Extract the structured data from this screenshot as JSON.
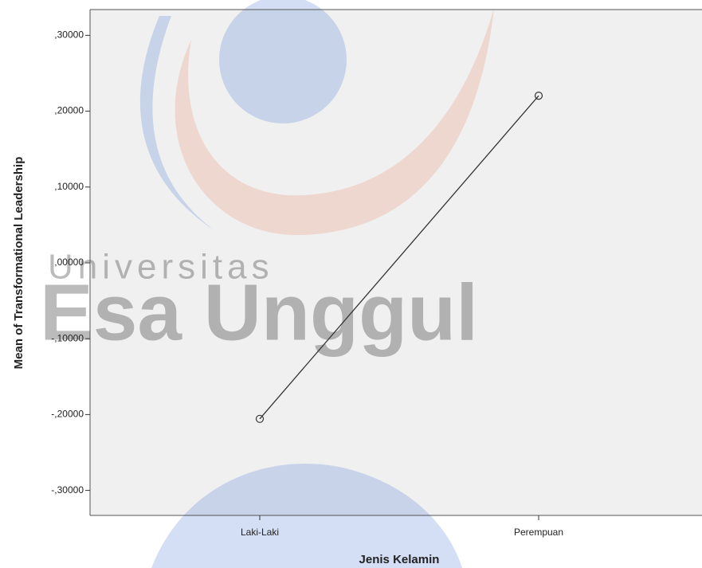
{
  "chart_data": {
    "type": "line",
    "x_label": "Jenis Kelamin",
    "y_label": "Mean of Transformational Leadership",
    "categories": [
      "Laki-Laki",
      "Perempuan"
    ],
    "values": [
      -0.2057,
      0.2204
    ],
    "color": "#333333",
    "ylim": [
      -0.333,
      0.334
    ],
    "yticks": [
      {
        "value": 0.3,
        "label": ",30000"
      },
      {
        "value": 0.2,
        "label": ",20000"
      },
      {
        "value": 0.1,
        "label": ",10000"
      },
      {
        "value": 0,
        "label": ",00000"
      },
      {
        "value": -0.1,
        "label": "-,10000"
      },
      {
        "value": -0.2,
        "label": "-,20000"
      },
      {
        "value": -0.3,
        "label": "-,30000"
      }
    ],
    "watermark": [
      "Universitas",
      "Esa Unggul"
    ]
  }
}
